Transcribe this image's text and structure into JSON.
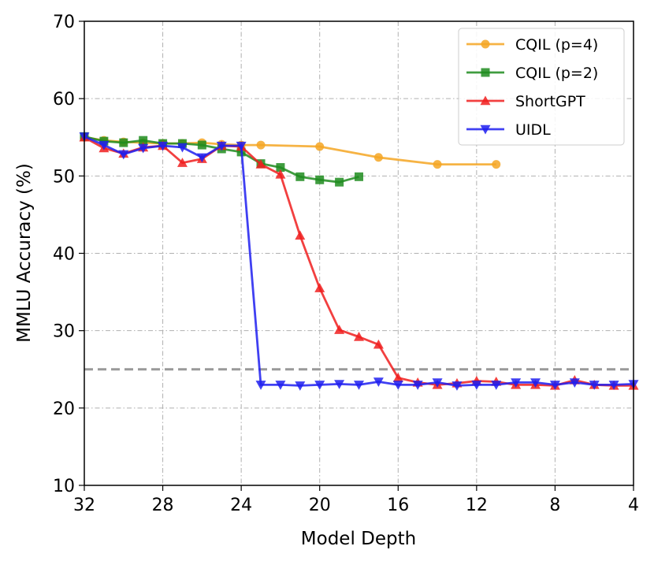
{
  "chart_data": {
    "type": "line",
    "title": "",
    "xlabel": "Model Depth",
    "ylabel": "MMLU Accuracy (%)",
    "xlim": [
      32,
      4
    ],
    "ylim": [
      10,
      70
    ],
    "xticks": [
      32,
      28,
      24,
      20,
      16,
      12,
      8,
      4
    ],
    "yticks": [
      10,
      20,
      30,
      40,
      50,
      60,
      70
    ],
    "grid": true,
    "legend_position": "top-right",
    "reference_line": {
      "y": 25,
      "color": "#999999",
      "style": "dashed"
    },
    "series": [
      {
        "name": "CQIL (p=4)",
        "color": "#f5a623",
        "marker": "circle",
        "x": [
          32,
          31,
          30,
          29,
          28,
          27,
          26,
          25,
          24,
          23,
          20,
          17,
          14,
          11
        ],
        "values": [
          55.0,
          54.6,
          54.4,
          54.3,
          54.2,
          54.2,
          54.3,
          54.1,
          54.0,
          54.0,
          53.8,
          52.4,
          51.5,
          51.5
        ]
      },
      {
        "name": "CQIL (p=2)",
        "color": "#1f8c1f",
        "marker": "square",
        "x": [
          32,
          31,
          30,
          29,
          28,
          27,
          26,
          25,
          24,
          23,
          22,
          21,
          20,
          19,
          18
        ],
        "values": [
          55.1,
          54.5,
          54.3,
          54.6,
          54.2,
          54.2,
          54.0,
          53.5,
          53.1,
          51.6,
          51.1,
          49.9,
          49.5,
          49.2,
          49.9
        ]
      },
      {
        "name": "ShortGPT",
        "color": "#f01e1e",
        "marker": "triangle-up",
        "x": [
          32,
          31,
          30,
          29,
          28,
          27,
          26,
          25,
          24,
          23,
          22,
          21,
          20,
          19,
          18,
          17,
          16,
          15,
          14,
          13,
          12,
          11,
          10,
          9,
          8,
          7,
          6,
          5,
          4
        ],
        "values": [
          55.0,
          53.6,
          52.9,
          53.7,
          53.9,
          51.7,
          52.2,
          53.9,
          53.8,
          51.5,
          50.2,
          42.3,
          35.5,
          30.1,
          29.2,
          28.2,
          23.9,
          23.3,
          23.0,
          23.2,
          23.5,
          23.4,
          23.0,
          23.0,
          22.9,
          23.6,
          23.0,
          22.9,
          22.9
        ]
      },
      {
        "name": "UIDL",
        "color": "#1e1ef0",
        "marker": "triangle-down",
        "x": [
          32,
          31,
          30,
          29,
          28,
          27,
          26,
          25,
          24,
          23,
          22,
          21,
          20,
          19,
          18,
          17,
          16,
          15,
          14,
          13,
          12,
          11,
          10,
          9,
          8,
          7,
          6,
          5,
          4
        ],
        "values": [
          55.1,
          54.0,
          52.8,
          53.6,
          53.9,
          53.7,
          52.4,
          53.9,
          53.9,
          23.0,
          23.0,
          22.9,
          23.0,
          23.1,
          23.0,
          23.4,
          23.0,
          23.0,
          23.3,
          22.9,
          23.0,
          23.0,
          23.3,
          23.3,
          23.0,
          23.3,
          23.0,
          23.0,
          23.1
        ]
      }
    ]
  }
}
